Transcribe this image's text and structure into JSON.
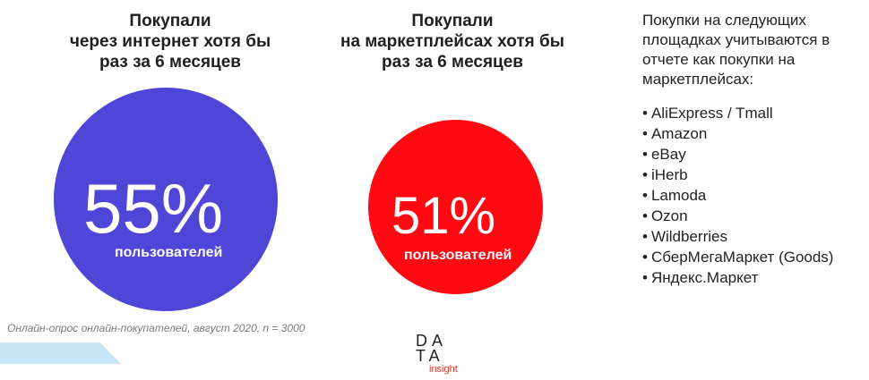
{
  "stat1": {
    "title_lines": [
      "Покупали",
      "через интернет хотя бы",
      "раз за 6 месяцев"
    ],
    "value": "55%",
    "unit": "пользователей",
    "color": "#4f45d6"
  },
  "stat2": {
    "title_lines": [
      "Покупали",
      "на маркетплейсах хотя бы",
      "раз за 6 месяцев"
    ],
    "value": "51%",
    "unit": "пользователей",
    "color": "#ff0a12"
  },
  "note": {
    "text_lines": [
      "Покупки на следующих",
      "площадках учитываются в",
      "отчете как покупки на",
      "маркетплейсах:"
    ],
    "items": [
      "AliExpress / Tmall",
      "Amazon",
      "eBay",
      "iHerb",
      "Lamoda",
      "Ozon",
      "Wildberries",
      "СберМегаМаркет (Goods)",
      "Яндекс.Маркет"
    ]
  },
  "footnote": "Онлайн-опрос онлайн-покупателей, август 2020, n = 3000",
  "logo": {
    "line1": "DA",
    "line2": "TA",
    "sub": "insight",
    "accent_color": "#e03a2e"
  }
}
